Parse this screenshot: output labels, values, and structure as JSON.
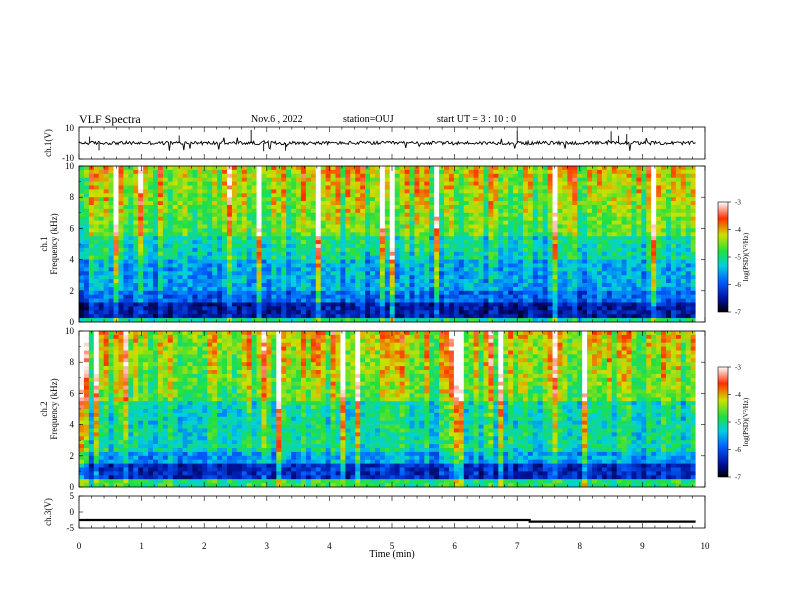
{
  "header": {
    "title": "VLF Spectra",
    "date": "Nov.6 , 2022",
    "station": "station=OUJ",
    "start": "start UT = 3 : 10 : 0"
  },
  "chart_data": [
    {
      "type": "line",
      "panel": "ch1-waveform",
      "ylabel": "ch.1(V)",
      "ylim": [
        -10,
        10
      ],
      "y_ticks": [
        "10",
        "-10"
      ],
      "baseline": 0,
      "spikes_note_free": true
    },
    {
      "type": "heatmap",
      "panel": "ch1-spectrogram",
      "ylabel_line1": "ch.1",
      "ylabel_line2": "Frequency (kHz)",
      "y_ticks": [
        "0",
        "2",
        "4",
        "6",
        "8",
        "10"
      ],
      "ylim": [
        0,
        10
      ],
      "colorbar": {
        "label": "log(PSD)(V²/Hz)",
        "ticks": [
          "-3",
          "-4",
          "-5",
          "-6",
          "-7"
        ],
        "range": [
          -7,
          -3
        ]
      }
    },
    {
      "type": "heatmap",
      "panel": "ch2-spectrogram",
      "ylabel_line1": "ch.2",
      "ylabel_line2": "Frequency (kHz)",
      "y_ticks": [
        "0",
        "2",
        "4",
        "6",
        "8",
        "10"
      ],
      "ylim": [
        0,
        10
      ],
      "colorbar": {
        "label": "log(PSD)(V²/Hz)",
        "ticks": [
          "-3",
          "-4",
          "-5",
          "-6",
          "-7"
        ],
        "range": [
          -7,
          -3
        ]
      }
    },
    {
      "type": "line",
      "panel": "ch3-level",
      "ylabel": "ch.3(V)",
      "ylim": [
        -5,
        5
      ],
      "y_ticks": [
        "5",
        "0",
        "-5"
      ],
      "x": [
        0,
        7.2,
        7.2,
        9.85
      ],
      "y": [
        -2.5,
        -2.5,
        -3.0,
        -3.0
      ]
    }
  ],
  "xaxis": {
    "label": "Time (min)",
    "ticks": [
      "0",
      "1",
      "2",
      "3",
      "4",
      "5",
      "6",
      "7",
      "8",
      "9",
      "10"
    ],
    "xlim": [
      0,
      10
    ],
    "data_end": 9.85
  }
}
